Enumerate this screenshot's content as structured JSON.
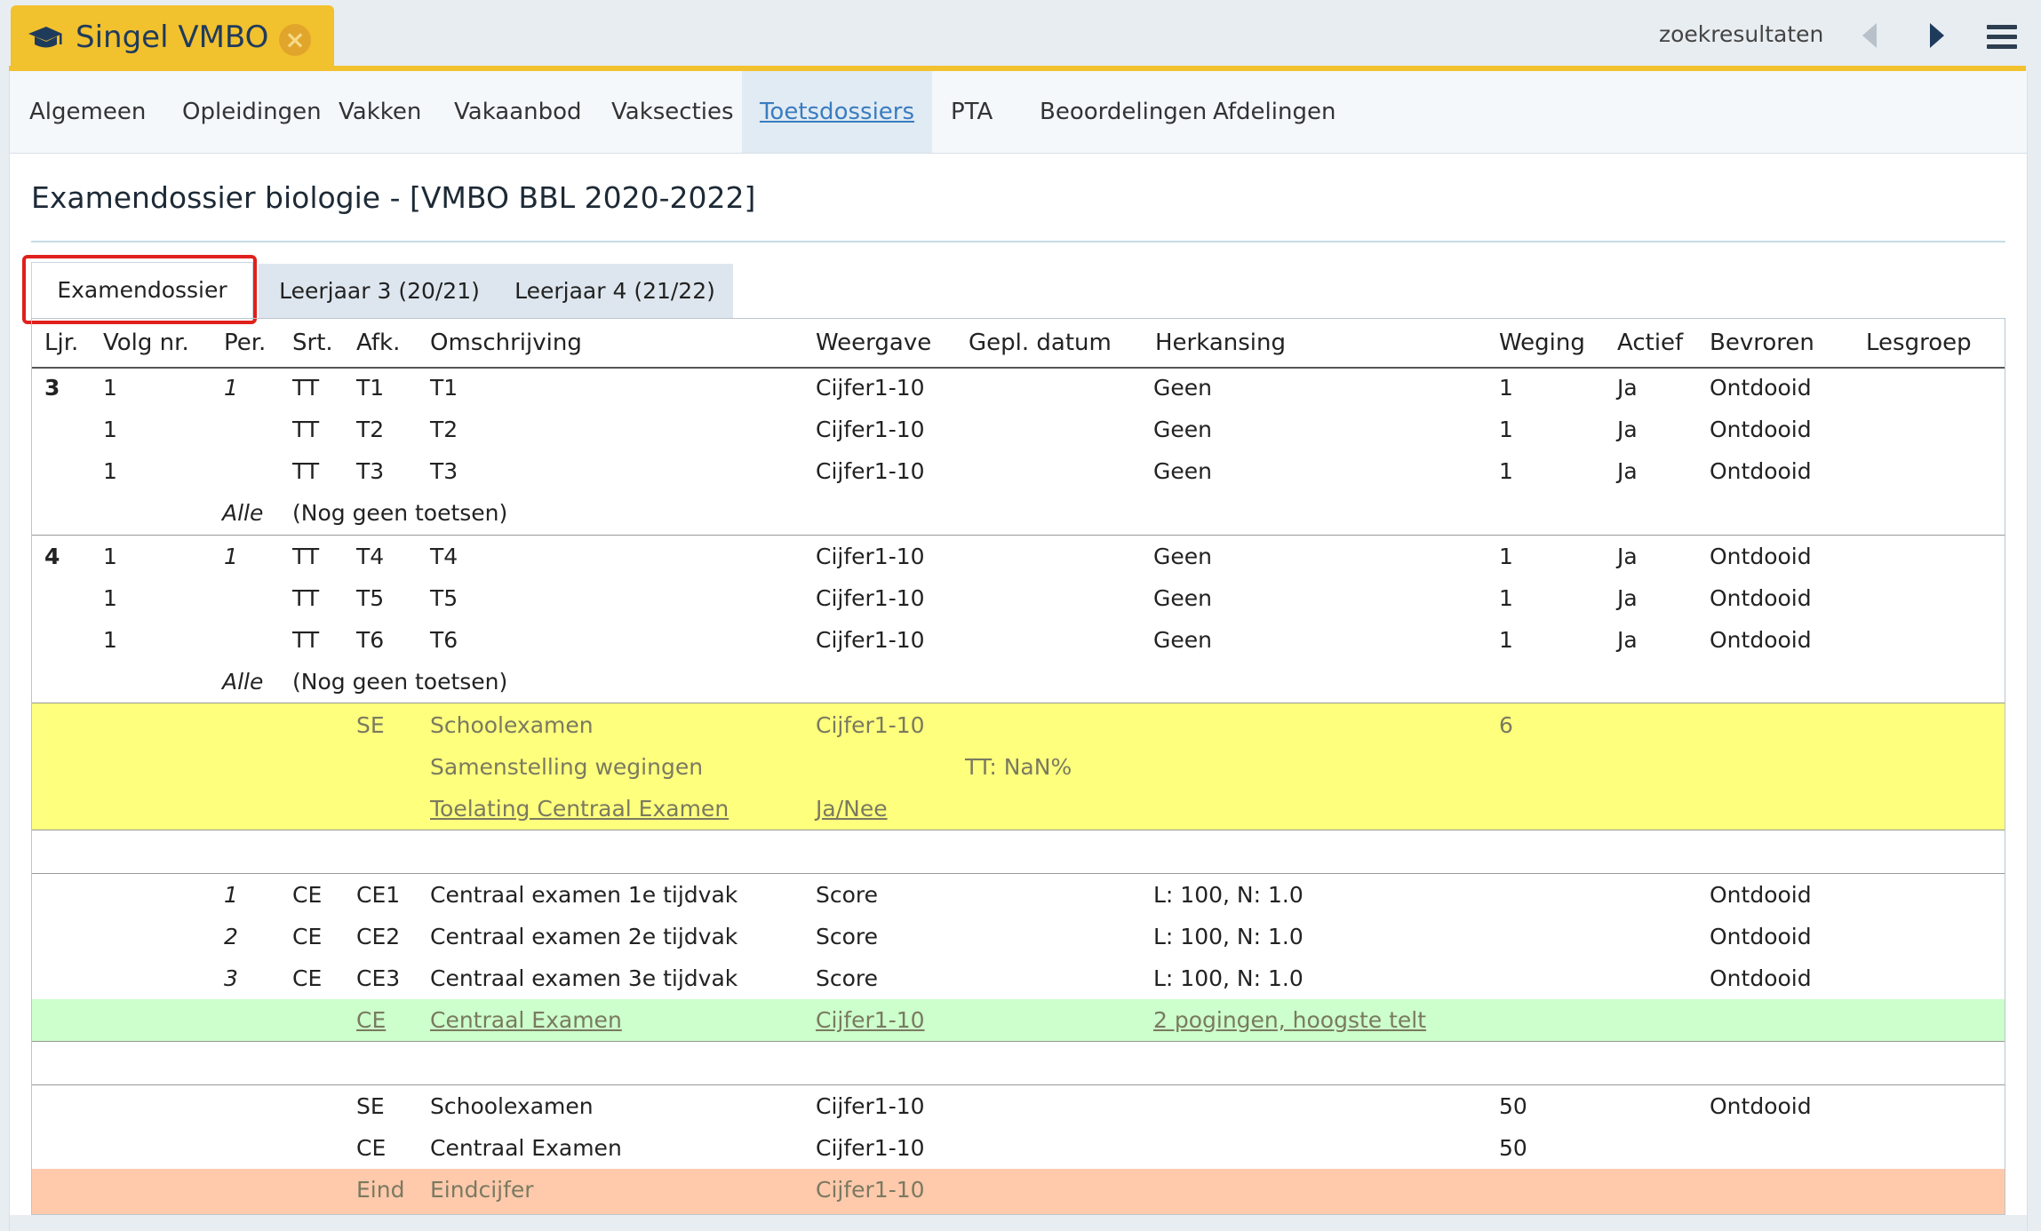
{
  "app": {
    "tab_title": "Singel VMBO",
    "search_results": "zoekresultaten"
  },
  "nav": {
    "items": [
      {
        "label": "Algemeen"
      },
      {
        "label": "Opleidingen"
      },
      {
        "label": "Vakken"
      },
      {
        "label": "Vakaanbod"
      },
      {
        "label": "Vaksecties"
      },
      {
        "label": "Toetsdossiers",
        "active": true
      },
      {
        "label": "PTA"
      },
      {
        "label": "Beoordelingen"
      },
      {
        "label": "Afdelingen"
      }
    ]
  },
  "page": {
    "title": "Examendossier biologie - [VMBO BBL 2020-2022]"
  },
  "tabs": [
    {
      "label": "Examendossier",
      "active": true
    },
    {
      "label": "Leerjaar 3 (20/21)"
    },
    {
      "label": "Leerjaar 4 (21/22)"
    }
  ],
  "table": {
    "headers": [
      "Ljr.",
      "Volg nr.",
      "Per.",
      "Srt.",
      "Afk.",
      "Omschrijving",
      "Weergave",
      "Gepl. datum",
      "Herkansing",
      "Weging",
      "Actief",
      "Bevroren",
      "Lesgroep"
    ],
    "rows": [
      {
        "ljr": "3",
        "volg": "1",
        "per": "1",
        "srt": "TT",
        "afk": "T1",
        "oms": "T1",
        "weer": "Cijfer1-10",
        "herk": "Geen",
        "weg": "1",
        "act": "Ja",
        "bev": "Ontdooid"
      },
      {
        "volg": "1",
        "srt": "TT",
        "afk": "T2",
        "oms": "T2",
        "weer": "Cijfer1-10",
        "herk": "Geen",
        "weg": "1",
        "act": "Ja",
        "bev": "Ontdooid"
      },
      {
        "volg": "1",
        "srt": "TT",
        "afk": "T3",
        "oms": "T3",
        "weer": "Cijfer1-10",
        "herk": "Geen",
        "weg": "1",
        "act": "Ja",
        "bev": "Ontdooid"
      },
      {
        "per": "Alle",
        "srt": "(Nog geen toetsen)"
      },
      {
        "ljr": "4",
        "volg": "1",
        "per": "1",
        "srt": "TT",
        "afk": "T4",
        "oms": "T4",
        "weer": "Cijfer1-10",
        "herk": "Geen",
        "weg": "1",
        "act": "Ja",
        "bev": "Ontdooid"
      },
      {
        "volg": "1",
        "srt": "TT",
        "afk": "T5",
        "oms": "T5",
        "weer": "Cijfer1-10",
        "herk": "Geen",
        "weg": "1",
        "act": "Ja",
        "bev": "Ontdooid"
      },
      {
        "volg": "1",
        "srt": "TT",
        "afk": "T6",
        "oms": "T6",
        "weer": "Cijfer1-10",
        "herk": "Geen",
        "weg": "1",
        "act": "Ja",
        "bev": "Ontdooid"
      },
      {
        "per": "Alle",
        "srt": "(Nog geen toetsen)"
      },
      {
        "afk": "SE",
        "oms": "Schoolexamen",
        "weer": "Cijfer1-10",
        "weg": "6"
      },
      {
        "oms": "Samenstelling wegingen",
        "gepl": "TT: NaN%"
      },
      {
        "oms": "Toelating Centraal Examen",
        "weer": "Ja/Nee"
      },
      {
        "per": "1",
        "srt": "CE",
        "afk": "CE1",
        "oms": "Centraal examen 1e tijdvak",
        "weer": "Score",
        "herk": "L: 100, N: 1.0",
        "bev": "Ontdooid"
      },
      {
        "per": "2",
        "srt": "CE",
        "afk": "CE2",
        "oms": "Centraal examen 2e tijdvak",
        "weer": "Score",
        "herk": "L: 100, N: 1.0",
        "bev": "Ontdooid"
      },
      {
        "per": "3",
        "srt": "CE",
        "afk": "CE3",
        "oms": "Centraal examen 3e tijdvak",
        "weer": "Score",
        "herk": "L: 100, N: 1.0",
        "bev": "Ontdooid"
      },
      {
        "afk": "CE",
        "oms": "Centraal Examen",
        "weer": "Cijfer1-10",
        "herk": "2 pogingen, hoogste telt"
      },
      {
        "afk": "SE",
        "oms": "Schoolexamen",
        "weer": "Cijfer1-10",
        "weg": "50",
        "bev": "Ontdooid"
      },
      {
        "afk": "CE",
        "oms": "Centraal Examen",
        "weer": "Cijfer1-10",
        "weg": "50"
      },
      {
        "afk": "Eind",
        "oms": "Eindcijfer",
        "weer": "Cijfer1-10"
      }
    ]
  }
}
